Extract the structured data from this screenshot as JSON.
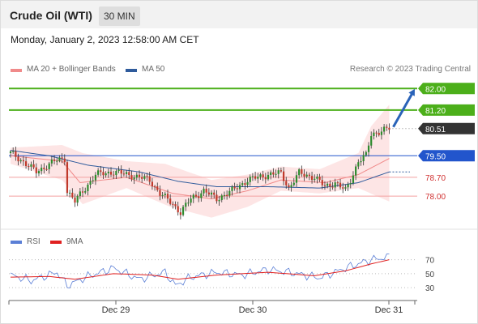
{
  "header": {
    "title": "Crude Oil (WTI)",
    "timeframe": "30 MIN"
  },
  "date_line": "Monday, January 2, 2023 12:58:00 AM CET",
  "legend": {
    "ma20": "MA 20 + Bollinger Bands",
    "ma20_color": "#f08a8a",
    "ma50": "MA 50",
    "ma50_color": "#2f5b9c",
    "credit": "Research © 2023 Trading Central"
  },
  "rsi_legend": {
    "rsi": "RSI",
    "rsi_color": "#5b7fd6",
    "ma": "9MA",
    "ma_color": "#e02020"
  },
  "colors": {
    "up": "#2e8b2e",
    "down": "#c0392b",
    "green_level": "#4caf1a",
    "blue_level": "#2255cc",
    "red_level": "#f3a0a0",
    "band_fill": "#fde0e0"
  },
  "chart_data": [
    {
      "type": "line",
      "title": "",
      "ylim": [
        77.1,
        82.4
      ],
      "x_tick_labels": [
        "Dec 29",
        "Dec 30",
        "Dec 31"
      ],
      "levels": [
        {
          "value": 82.0,
          "label": "82.00",
          "kind": "resistance"
        },
        {
          "value": 81.2,
          "label": "81.20",
          "kind": "resistance"
        },
        {
          "value": 80.51,
          "label": "80.51",
          "kind": "last"
        },
        {
          "value": 79.5,
          "label": "79.50",
          "kind": "pivot"
        },
        {
          "value": 78.7,
          "label": "78.70",
          "kind": "support"
        },
        {
          "value": 78.0,
          "label": "78.00",
          "kind": "support"
        }
      ],
      "anchors": [
        [
          0,
          79.6
        ],
        [
          4,
          79.35
        ],
        [
          10,
          78.9
        ],
        [
          17,
          79.3
        ],
        [
          21,
          79.4
        ],
        [
          22,
          78.2
        ],
        [
          25,
          77.8
        ],
        [
          29,
          78.3
        ],
        [
          33,
          78.8
        ],
        [
          40,
          78.9
        ],
        [
          48,
          78.75
        ],
        [
          54,
          78.6
        ],
        [
          58,
          78.1
        ],
        [
          63,
          77.7
        ],
        [
          66,
          77.4
        ],
        [
          70,
          77.9
        ],
        [
          75,
          78.2
        ],
        [
          80,
          77.9
        ],
        [
          86,
          78.2
        ],
        [
          92,
          78.6
        ],
        [
          100,
          78.8
        ],
        [
          105,
          78.85
        ],
        [
          108,
          78.3
        ],
        [
          112,
          78.85
        ],
        [
          118,
          78.7
        ],
        [
          122,
          78.35
        ],
        [
          126,
          78.5
        ],
        [
          130,
          78.2
        ],
        [
          132,
          78.6
        ],
        [
          135,
          79.3
        ],
        [
          138,
          79.5
        ],
        [
          140,
          80.3
        ],
        [
          143,
          80.4
        ],
        [
          147,
          80.51
        ]
      ],
      "ma20_anchors": [
        [
          0,
          79.5
        ],
        [
          20,
          79.3
        ],
        [
          27,
          78.5
        ],
        [
          45,
          78.7
        ],
        [
          63,
          78.1
        ],
        [
          78,
          77.9
        ],
        [
          92,
          78.2
        ],
        [
          105,
          78.6
        ],
        [
          122,
          78.5
        ],
        [
          135,
          78.8
        ],
        [
          147,
          79.4
        ]
      ],
      "band_upper": [
        [
          0,
          79.8
        ],
        [
          20,
          79.9
        ],
        [
          28,
          79.6
        ],
        [
          45,
          79.3
        ],
        [
          60,
          79.2
        ],
        [
          78,
          78.6
        ],
        [
          92,
          78.8
        ],
        [
          105,
          79.1
        ],
        [
          120,
          79.0
        ],
        [
          135,
          79.6
        ],
        [
          140,
          80.6
        ],
        [
          147,
          81.4
        ]
      ],
      "band_lower": [
        [
          0,
          79.2
        ],
        [
          20,
          78.6
        ],
        [
          28,
          77.7
        ],
        [
          45,
          78.3
        ],
        [
          62,
          77.6
        ],
        [
          78,
          77.2
        ],
        [
          92,
          77.6
        ],
        [
          105,
          78.2
        ],
        [
          120,
          78.1
        ],
        [
          135,
          78.3
        ],
        [
          147,
          77.8
        ]
      ],
      "ma50_anchors": [
        [
          0,
          79.7
        ],
        [
          15,
          79.5
        ],
        [
          30,
          79.15
        ],
        [
          50,
          78.9
        ],
        [
          65,
          78.55
        ],
        [
          80,
          78.35
        ],
        [
          100,
          78.35
        ],
        [
          120,
          78.3
        ],
        [
          135,
          78.5
        ],
        [
          147,
          78.9
        ]
      ],
      "forecast": {
        "from": 80.51,
        "to": 82.0
      }
    },
    {
      "type": "line",
      "title": "",
      "ylim": [
        15,
        80
      ],
      "y_tick_labels": [
        "70",
        "50",
        "30"
      ],
      "rsi_anchors": [
        [
          0,
          48
        ],
        [
          8,
          40
        ],
        [
          18,
          52
        ],
        [
          22,
          33
        ],
        [
          30,
          46
        ],
        [
          40,
          58
        ],
        [
          50,
          42
        ],
        [
          60,
          52
        ],
        [
          64,
          33
        ],
        [
          70,
          45
        ],
        [
          80,
          52
        ],
        [
          90,
          48
        ],
        [
          100,
          56
        ],
        [
          108,
          52
        ],
        [
          120,
          44
        ],
        [
          130,
          58
        ],
        [
          140,
          70
        ],
        [
          147,
          74
        ]
      ],
      "ma_anchors": [
        [
          0,
          45
        ],
        [
          15,
          46
        ],
        [
          25,
          42
        ],
        [
          40,
          50
        ],
        [
          55,
          48
        ],
        [
          65,
          42
        ],
        [
          80,
          48
        ],
        [
          100,
          52
        ],
        [
          118,
          47
        ],
        [
          130,
          54
        ],
        [
          140,
          64
        ],
        [
          147,
          70
        ]
      ]
    }
  ]
}
